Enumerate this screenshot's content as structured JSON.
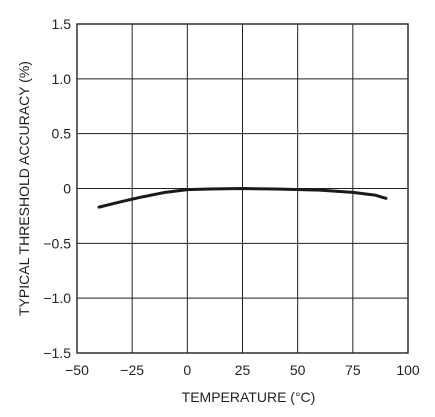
{
  "chart_data": {
    "type": "line",
    "title": "",
    "xlabel": "TEMPERATURE (°C)",
    "ylabel": "TYPICAL THRESHOLD ACCURACY (%)",
    "xlim": [
      -50,
      100
    ],
    "ylim": [
      -1.5,
      1.5
    ],
    "grid": true,
    "legend": "none",
    "xticks": [
      -50,
      -25,
      0,
      25,
      50,
      75,
      100
    ],
    "yticks": [
      1.5,
      1.0,
      0.5,
      0,
      -0.5,
      -1.0,
      -1.5
    ],
    "xtick_labels": [
      "−50",
      "−25",
      "0",
      "25",
      "50",
      "75",
      "100"
    ],
    "ytick_labels": [
      "1.5",
      "1.0",
      "0.5",
      "0",
      "−0.5",
      "−1.0",
      "−1.5"
    ],
    "series": [
      {
        "x": [
          -40,
          -30,
          -20,
          -10,
          0,
          10,
          25,
          40,
          60,
          75,
          85,
          90
        ],
        "y": [
          -0.17,
          -0.12,
          -0.075,
          -0.035,
          -0.01,
          -0.005,
          0.0,
          -0.005,
          -0.015,
          -0.035,
          -0.06,
          -0.09
        ],
        "color": "#1a1a1a"
      }
    ],
    "colors": {
      "grid": "#231f20",
      "frame": "#231f20",
      "line": "#1a1a1a",
      "text": "#231f20"
    }
  }
}
